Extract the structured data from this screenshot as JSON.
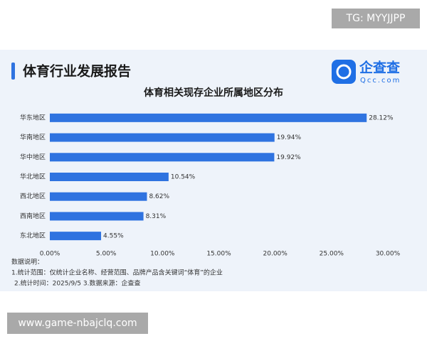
{
  "watermark": "TG: MYYJJPP",
  "header": {
    "title": "体育行业发展报告"
  },
  "logo": {
    "name": "企查查",
    "domain": "Qcc.com"
  },
  "chart_data": {
    "type": "bar",
    "orientation": "horizontal",
    "title": "体育相关现存企业所属地区分布",
    "categories": [
      "华东地区",
      "华南地区",
      "华中地区",
      "华北地区",
      "西北地区",
      "西南地区",
      "东北地区"
    ],
    "values": [
      28.12,
      19.94,
      19.92,
      10.54,
      8.62,
      8.31,
      4.55
    ],
    "value_labels": [
      "28.12%",
      "19.94%",
      "19.92%",
      "10.54%",
      "8.62%",
      "8.31%",
      "4.55%"
    ],
    "color": "#2f73e0",
    "xlim": [
      0,
      30
    ],
    "xticks": [
      {
        "value": 0,
        "label": "0.00%"
      },
      {
        "value": 5,
        "label": "5.00%"
      },
      {
        "value": 10,
        "label": "10.00%"
      },
      {
        "value": 15,
        "label": "15.00%"
      },
      {
        "value": 20,
        "label": "20.00%"
      },
      {
        "value": 25,
        "label": "25.00%"
      },
      {
        "value": 30,
        "label": "30.00%"
      }
    ],
    "grid": false
  },
  "notes": [
    "数据说明：",
    "1.统计范围：仅统计企业名称、经营范围、品牌产品含关键词“体育”的企业",
    "2.统计时间：2025/9/5 3.数据来源：企查查"
  ],
  "footer_url": "www.game-nbajclq.com"
}
